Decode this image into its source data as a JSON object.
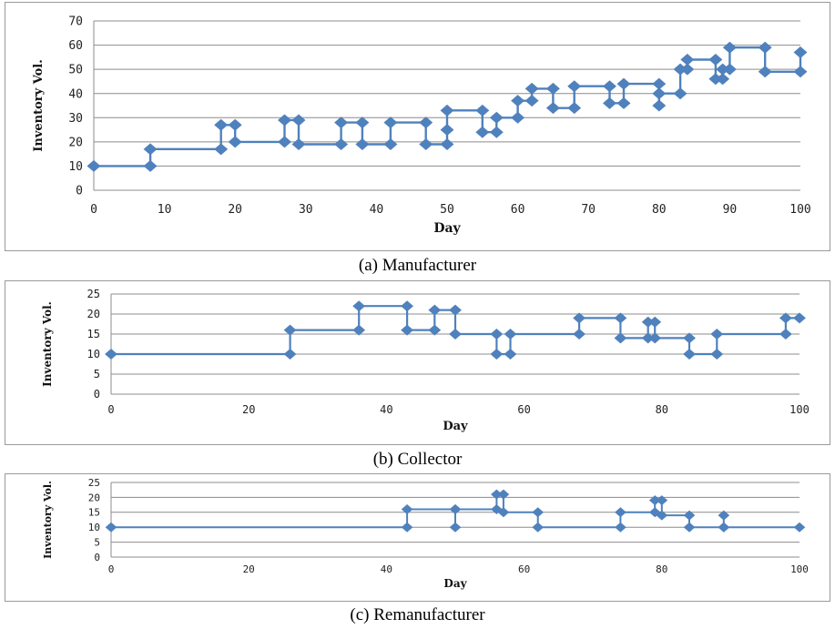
{
  "chart_data": [
    {
      "type": "line",
      "caption": "(a) Manufacturer",
      "xlabel": "Day",
      "ylabel": "Inventory Vol.",
      "xlim": [
        0,
        100
      ],
      "ylim": [
        0,
        70
      ],
      "xticks": [
        0,
        10,
        20,
        30,
        40,
        50,
        60,
        70,
        80,
        90,
        100
      ],
      "yticks": [
        0,
        10,
        20,
        30,
        40,
        50,
        60,
        70
      ],
      "grid": "horizontal",
      "color": "#4f81bd",
      "step": true,
      "points": [
        [
          0,
          10
        ],
        [
          8,
          10
        ],
        [
          8,
          17
        ],
        [
          18,
          17
        ],
        [
          18,
          27
        ],
        [
          20,
          27
        ],
        [
          20,
          20
        ],
        [
          27,
          20
        ],
        [
          27,
          29
        ],
        [
          29,
          29
        ],
        [
          29,
          19
        ],
        [
          35,
          19
        ],
        [
          35,
          28
        ],
        [
          38,
          28
        ],
        [
          38,
          19
        ],
        [
          42,
          19
        ],
        [
          42,
          28
        ],
        [
          47,
          28
        ],
        [
          47,
          19
        ],
        [
          50,
          19
        ],
        [
          50,
          25
        ],
        [
          50,
          33
        ],
        [
          55,
          33
        ],
        [
          55,
          24
        ],
        [
          57,
          24
        ],
        [
          57,
          30
        ],
        [
          60,
          30
        ],
        [
          60,
          37
        ],
        [
          62,
          37
        ],
        [
          62,
          42
        ],
        [
          65,
          42
        ],
        [
          65,
          34
        ],
        [
          68,
          34
        ],
        [
          68,
          43
        ],
        [
          73,
          43
        ],
        [
          73,
          36
        ],
        [
          75,
          36
        ],
        [
          75,
          44
        ],
        [
          80,
          44
        ],
        [
          80,
          35
        ],
        [
          80,
          40
        ],
        [
          83,
          40
        ],
        [
          83,
          50
        ],
        [
          84,
          50
        ],
        [
          84,
          54
        ],
        [
          88,
          54
        ],
        [
          88,
          46
        ],
        [
          89,
          46
        ],
        [
          89,
          50
        ],
        [
          90,
          50
        ],
        [
          90,
          59
        ],
        [
          95,
          59
        ],
        [
          95,
          49
        ],
        [
          100,
          49
        ],
        [
          100,
          57
        ]
      ]
    },
    {
      "type": "line",
      "caption": "(b) Collector",
      "xlabel": "Day",
      "ylabel": "Inventory Vol.",
      "xlim": [
        0,
        100
      ],
      "ylim": [
        0,
        25
      ],
      "xticks": [
        0,
        20,
        40,
        60,
        80,
        100
      ],
      "yticks": [
        0,
        5,
        10,
        15,
        20,
        25
      ],
      "grid": "horizontal",
      "color": "#4f81bd",
      "step": true,
      "points": [
        [
          0,
          10
        ],
        [
          26,
          10
        ],
        [
          26,
          16
        ],
        [
          36,
          16
        ],
        [
          36,
          22
        ],
        [
          43,
          22
        ],
        [
          43,
          16
        ],
        [
          47,
          16
        ],
        [
          47,
          21
        ],
        [
          50,
          21
        ],
        [
          50,
          15
        ],
        [
          56,
          15
        ],
        [
          56,
          10
        ],
        [
          58,
          10
        ],
        [
          58,
          15
        ],
        [
          68,
          15
        ],
        [
          68,
          19
        ],
        [
          74,
          19
        ],
        [
          74,
          14
        ],
        [
          78,
          14
        ],
        [
          78,
          18
        ],
        [
          79,
          18
        ],
        [
          79,
          14
        ],
        [
          84,
          14
        ],
        [
          84,
          10
        ],
        [
          88,
          10
        ],
        [
          88,
          15
        ],
        [
          98,
          15
        ],
        [
          98,
          19
        ],
        [
          100,
          19
        ]
      ]
    },
    {
      "type": "line",
      "caption": "(c) Remanufacturer",
      "xlabel": "Day",
      "ylabel": "Inventory Vol.",
      "xlim": [
        0,
        100
      ],
      "ylim": [
        0,
        25
      ],
      "xticks": [
        0,
        20,
        40,
        60,
        80,
        100
      ],
      "yticks": [
        0,
        5,
        10,
        15,
        20,
        25
      ],
      "grid": "horizontal",
      "color": "#4f81bd",
      "step": true,
      "points": [
        [
          0,
          10
        ],
        [
          43,
          10
        ],
        [
          43,
          16
        ],
        [
          50,
          16
        ],
        [
          50,
          10
        ],
        [
          50,
          16
        ],
        [
          56,
          16
        ],
        [
          56,
          21
        ],
        [
          57,
          21
        ],
        [
          57,
          15
        ],
        [
          62,
          15
        ],
        [
          62,
          10
        ],
        [
          74,
          10
        ],
        [
          74,
          15
        ],
        [
          79,
          15
        ],
        [
          79,
          19
        ],
        [
          80,
          19
        ],
        [
          80,
          14
        ],
        [
          84,
          14
        ],
        [
          84,
          10
        ],
        [
          89,
          10
        ],
        [
          89,
          14
        ],
        [
          89,
          10
        ],
        [
          100,
          10
        ]
      ]
    }
  ]
}
